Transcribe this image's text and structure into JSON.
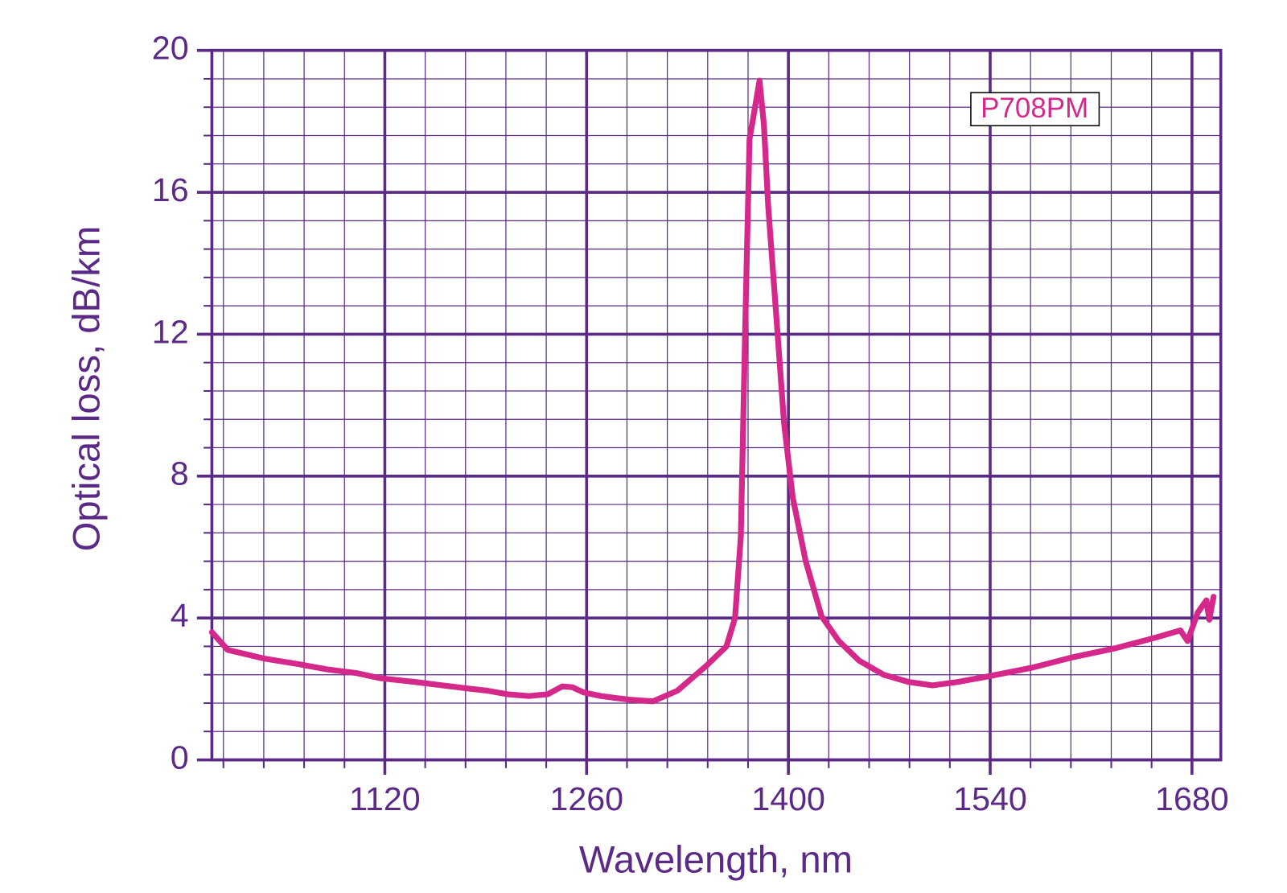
{
  "chart_data": {
    "type": "line",
    "xlabel": "Wavelength, nm",
    "ylabel": "Optical loss, dB/km",
    "xlim": [
      1000,
      1700
    ],
    "ylim": [
      0,
      20
    ],
    "xticks": [
      1120,
      1260,
      1400,
      1540,
      1680
    ],
    "yticks": [
      0,
      4,
      8,
      12,
      16,
      20
    ],
    "x_minor_ticks": [
      1008,
      1036,
      1064,
      1092,
      1120,
      1148,
      1176,
      1204,
      1232,
      1260,
      1288,
      1316,
      1344,
      1372,
      1400,
      1428,
      1456,
      1484,
      1512,
      1540,
      1568,
      1596,
      1624,
      1652,
      1680
    ],
    "y_minor_ticks": [
      0,
      0.8,
      1.6,
      2.4,
      3.2,
      4,
      4.8,
      5.6,
      6.4,
      7.2,
      8,
      8.8,
      9.6,
      10.4,
      11.2,
      12,
      12.8,
      13.6,
      14.4,
      15.2,
      16,
      16.8,
      17.6,
      18.4,
      19.2,
      20
    ],
    "grid": true,
    "legend": "upper right",
    "axis_color": "#5b2a86",
    "series": [
      {
        "name": "P708PM",
        "color": "#d4288a",
        "x": [
          1000,
          1011,
          1037,
          1060,
          1080,
          1100,
          1117,
          1140,
          1160,
          1180,
          1191,
          1205,
          1220,
          1233,
          1243,
          1250,
          1258,
          1270,
          1289,
          1306,
          1323,
          1343,
          1357,
          1363,
          1367,
          1370,
          1373,
          1376,
          1380,
          1383,
          1386,
          1392,
          1397,
          1403,
          1412,
          1423,
          1435,
          1449,
          1466,
          1483,
          1500,
          1518,
          1538,
          1569,
          1598,
          1627,
          1655,
          1672,
          1677,
          1684,
          1690,
          1692,
          1695
        ],
        "values": [
          3.6,
          3.1,
          2.85,
          2.7,
          2.55,
          2.45,
          2.3,
          2.2,
          2.1,
          2.0,
          1.95,
          1.85,
          1.8,
          1.85,
          2.07,
          2.05,
          1.9,
          1.8,
          1.7,
          1.65,
          1.95,
          2.65,
          3.2,
          4.0,
          6.3,
          12.1,
          17.5,
          18.2,
          19.15,
          17.9,
          15.6,
          12.3,
          9.5,
          7.4,
          5.6,
          4.05,
          3.35,
          2.8,
          2.4,
          2.2,
          2.1,
          2.2,
          2.35,
          2.6,
          2.9,
          3.15,
          3.45,
          3.65,
          3.35,
          4.15,
          4.5,
          3.95,
          4.6
        ]
      }
    ]
  }
}
